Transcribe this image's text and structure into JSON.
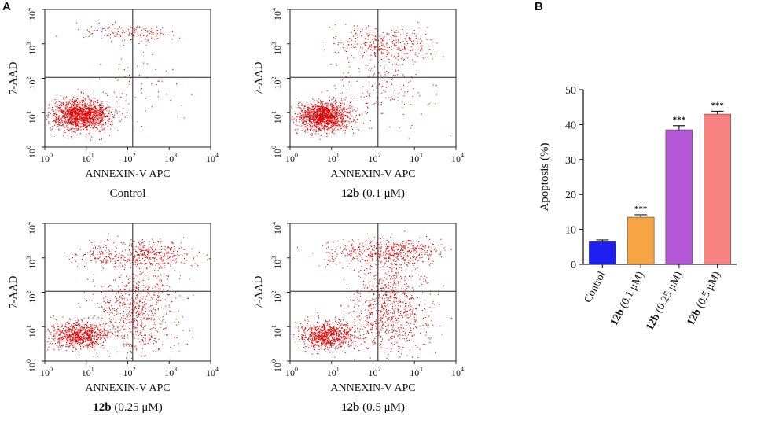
{
  "panels": {
    "a": "A",
    "b": "B"
  },
  "flow": {
    "x_axis_label": "ANNEXIN-V APC",
    "y_axis_label": "7-AAD",
    "tick_base": "10",
    "tick_exponents": [
      "0",
      "1",
      "2",
      "3",
      "4"
    ],
    "dot_color": "#e00000",
    "plots": [
      {
        "compound": "",
        "condition": "Control",
        "bold_compound": false
      },
      {
        "compound": "12b",
        "condition": " (0.1 μM)",
        "bold_compound": true
      },
      {
        "compound": "12b",
        "condition": " (0.25 μM)",
        "bold_compound": true
      },
      {
        "compound": "12b",
        "condition": " (0.5 μM)",
        "bold_compound": true
      }
    ]
  },
  "chart_data": {
    "type": "bar",
    "ylabel": "Apoptosis (%)",
    "ylim": [
      0,
      50
    ],
    "yticks": [
      0,
      10,
      20,
      30,
      40,
      50
    ],
    "categories": [
      {
        "bold": "",
        "rest": "Control"
      },
      {
        "bold": "12b",
        "rest": " (0.1 μM)"
      },
      {
        "bold": "12b",
        "rest": " (0.25 μM)"
      },
      {
        "bold": "12b",
        "rest": " (0.5 μM)"
      }
    ],
    "values": [
      6.5,
      13.5,
      38.5,
      43.0
    ],
    "errors": [
      0.5,
      0.7,
      1.2,
      0.8
    ],
    "significance": [
      "",
      "***",
      "***",
      "***"
    ],
    "colors": [
      "#1f1fef",
      "#f7a444",
      "#b357d6",
      "#f78080"
    ]
  }
}
